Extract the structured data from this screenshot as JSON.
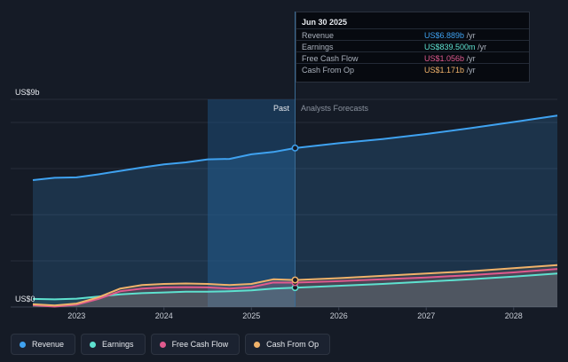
{
  "tooltip": {
    "date": "Jun 30 2025",
    "rows": [
      {
        "label": "Revenue",
        "value": "US$6.889b",
        "unit": "/yr",
        "color": "#3fa2f0"
      },
      {
        "label": "Earnings",
        "value": "US$839.500m",
        "unit": "/yr",
        "color": "#5ee1cf"
      },
      {
        "label": "Free Cash Flow",
        "value": "US$1.056b",
        "unit": "/yr",
        "color": "#e05a8e"
      },
      {
        "label": "Cash From Op",
        "value": "US$1.171b",
        "unit": "/yr",
        "color": "#f0b26a"
      }
    ]
  },
  "regions": {
    "past": "Past",
    "forecast": "Analysts Forecasts"
  },
  "legend": [
    {
      "label": "Revenue",
      "color": "#3fa2f0"
    },
    {
      "label": "Earnings",
      "color": "#5ee1cf"
    },
    {
      "label": "Free Cash Flow",
      "color": "#e05a8e"
    },
    {
      "label": "Cash From Op",
      "color": "#f0b26a"
    }
  ],
  "chart_data": {
    "type": "area",
    "y_top_label": "US$9b",
    "y_bottom_label": "US$0",
    "ylim": [
      0,
      9
    ],
    "xlim": [
      2022.5,
      2028.5
    ],
    "x_ticks": [
      "2023",
      "2024",
      "2025",
      "2026",
      "2027",
      "2028"
    ],
    "past_end": 2025.5,
    "highlight_start": 2024.5,
    "marker_x": 2025.5,
    "series": [
      {
        "name": "Revenue",
        "color": "#3fa2f0",
        "x": [
          2022.5,
          2022.75,
          2023.0,
          2023.25,
          2023.5,
          2023.75,
          2024.0,
          2024.25,
          2024.5,
          2024.75,
          2025.0,
          2025.25,
          2025.5,
          2026.0,
          2026.5,
          2027.0,
          2027.5,
          2028.0,
          2028.5
        ],
        "y": [
          5.5,
          5.6,
          5.62,
          5.75,
          5.9,
          6.05,
          6.18,
          6.27,
          6.4,
          6.42,
          6.62,
          6.72,
          6.89,
          7.1,
          7.28,
          7.5,
          7.75,
          8.02,
          8.3
        ]
      },
      {
        "name": "Earnings",
        "color": "#5ee1cf",
        "x": [
          2022.5,
          2022.75,
          2023.0,
          2023.25,
          2023.5,
          2023.75,
          2024.0,
          2024.25,
          2024.5,
          2024.75,
          2025.0,
          2025.25,
          2025.5,
          2026.0,
          2026.5,
          2027.0,
          2027.5,
          2028.0,
          2028.5
        ],
        "y": [
          0.35,
          0.33,
          0.36,
          0.45,
          0.55,
          0.6,
          0.63,
          0.66,
          0.66,
          0.68,
          0.72,
          0.8,
          0.84,
          0.92,
          1.0,
          1.1,
          1.2,
          1.32,
          1.45
        ]
      },
      {
        "name": "Free Cash Flow",
        "color": "#e05a8e",
        "x": [
          2022.5,
          2022.75,
          2023.0,
          2023.25,
          2023.5,
          2023.75,
          2024.0,
          2024.25,
          2024.5,
          2024.75,
          2025.0,
          2025.25,
          2025.5,
          2026.0,
          2026.5,
          2027.0,
          2027.5,
          2028.0,
          2028.5
        ],
        "y": [
          0.08,
          0.02,
          0.1,
          0.35,
          0.68,
          0.8,
          0.85,
          0.86,
          0.85,
          0.8,
          0.86,
          1.06,
          1.056,
          1.12,
          1.2,
          1.28,
          1.38,
          1.5,
          1.65
        ]
      },
      {
        "name": "Cash From Op",
        "color": "#f0b26a",
        "x": [
          2022.5,
          2022.75,
          2023.0,
          2023.25,
          2023.5,
          2023.75,
          2024.0,
          2024.25,
          2024.5,
          2024.75,
          2025.0,
          2025.25,
          2025.5,
          2026.0,
          2026.5,
          2027.0,
          2027.5,
          2028.0,
          2028.5
        ],
        "y": [
          0.12,
          0.07,
          0.15,
          0.42,
          0.8,
          0.95,
          1.0,
          1.02,
          1.0,
          0.95,
          1.0,
          1.2,
          1.171,
          1.25,
          1.35,
          1.45,
          1.55,
          1.68,
          1.82
        ]
      }
    ]
  }
}
